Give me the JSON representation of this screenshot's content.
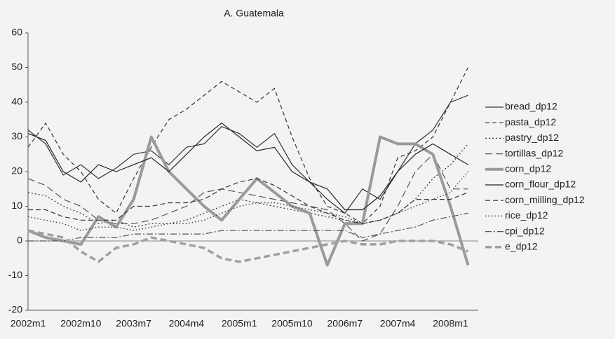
{
  "chart_data": {
    "type": "line",
    "title": "A. Guatemala",
    "categories": [
      "2002m1",
      null,
      null,
      "2002m10",
      null,
      null,
      "2003m7",
      null,
      null,
      "2004m4",
      null,
      null,
      "2005m1",
      null,
      null,
      "2005m10",
      null,
      null,
      "2006m7",
      null,
      null,
      "2007m4",
      null,
      null,
      "2008m1",
      null
    ],
    "ylim": [
      -20,
      60
    ],
    "yticks": [
      -20,
      -10,
      0,
      10,
      20,
      30,
      40,
      50,
      60
    ],
    "grid": false,
    "legend": "right",
    "series": [
      {
        "name": "bread_dp12",
        "color": "#333333",
        "dash": "",
        "width": 1.2,
        "values": [
          32,
          28,
          19,
          22,
          18,
          21,
          25,
          26,
          22,
          27,
          28,
          33,
          31,
          27,
          31,
          22,
          17,
          12,
          8,
          15,
          12,
          20,
          28,
          32,
          40,
          42
        ]
      },
      {
        "name": "pasta_dp12",
        "color": "#333333",
        "dash": "6 4",
        "width": 1.2,
        "values": [
          27,
          34,
          25,
          20,
          12,
          8,
          18,
          27,
          35,
          38,
          42,
          46,
          43,
          40,
          44,
          30,
          18,
          10,
          8,
          5,
          10,
          24,
          26,
          30,
          40,
          50
        ]
      },
      {
        "name": "pastry_dp12",
        "color": "#333333",
        "dash": "2 3",
        "width": 1.2,
        "values": [
          14,
          13,
          10,
          8,
          5,
          6,
          4,
          5,
          5,
          6,
          8,
          10,
          12,
          11,
          10,
          9,
          8,
          7,
          6,
          5,
          6,
          8,
          12,
          18,
          22,
          28
        ]
      },
      {
        "name": "tortillas_dp12",
        "color": "#555555",
        "dash": "10 5",
        "width": 1.2,
        "values": [
          18,
          16,
          12,
          10,
          6,
          5,
          5,
          6,
          8,
          10,
          14,
          15,
          14,
          13,
          12,
          11,
          10,
          9,
          5,
          0,
          2,
          10,
          20,
          25,
          15,
          15
        ]
      },
      {
        "name": "corn_dp12",
        "color": "#9a9a9a",
        "dash": "",
        "width": 4,
        "values": [
          3,
          1,
          0,
          -1,
          7,
          4,
          12,
          30,
          20,
          15,
          10,
          6,
          12,
          18,
          14,
          10,
          8,
          -7,
          5,
          5,
          30,
          28,
          28,
          25,
          10,
          -7
        ]
      },
      {
        "name": "corn_flour_dp12",
        "color": "#222222",
        "dash": "",
        "width": 1.2,
        "values": [
          31,
          29,
          20,
          17,
          22,
          20,
          22,
          24,
          20,
          25,
          30,
          34,
          30,
          26,
          27,
          20,
          17,
          15,
          9,
          9,
          13,
          20,
          25,
          28,
          25,
          22
        ]
      },
      {
        "name": "corn_milling_dp12",
        "color": "#333333",
        "dash": "7 4",
        "width": 1.2,
        "values": [
          9,
          9,
          7,
          6,
          6,
          6,
          10,
          10,
          11,
          11,
          12,
          15,
          17,
          18,
          16,
          13,
          10,
          8,
          6,
          5,
          6,
          8,
          12,
          12,
          12,
          14
        ]
      },
      {
        "name": "rice_dp12",
        "color": "#444444",
        "dash": "1.5 3",
        "width": 1.5,
        "values": [
          7,
          6,
          5,
          3,
          4,
          4,
          3,
          4,
          5,
          5,
          6,
          8,
          10,
          11,
          11,
          10,
          9,
          8,
          7,
          5,
          6,
          8,
          10,
          12,
          14,
          20
        ]
      },
      {
        "name": "cpi_dp12",
        "color": "#555555",
        "dash": "9 3 2 3",
        "width": 1.2,
        "values": [
          0,
          0,
          0,
          1,
          1,
          1,
          2,
          2,
          2,
          2,
          2,
          3,
          3,
          3,
          3,
          3,
          3,
          3,
          3,
          1,
          2,
          3,
          4,
          6,
          7,
          8
        ]
      },
      {
        "name": "e_dp12",
        "color": "#a0a0a0",
        "dash": "9 5",
        "width": 3.5,
        "values": [
          3,
          2,
          1,
          -3,
          -6,
          -2,
          -1,
          1,
          0,
          -1,
          -2,
          -5,
          -6,
          -5,
          -4,
          -3,
          -2,
          -1,
          0,
          -1,
          -1,
          0,
          0,
          0,
          -1,
          -3
        ]
      }
    ]
  }
}
